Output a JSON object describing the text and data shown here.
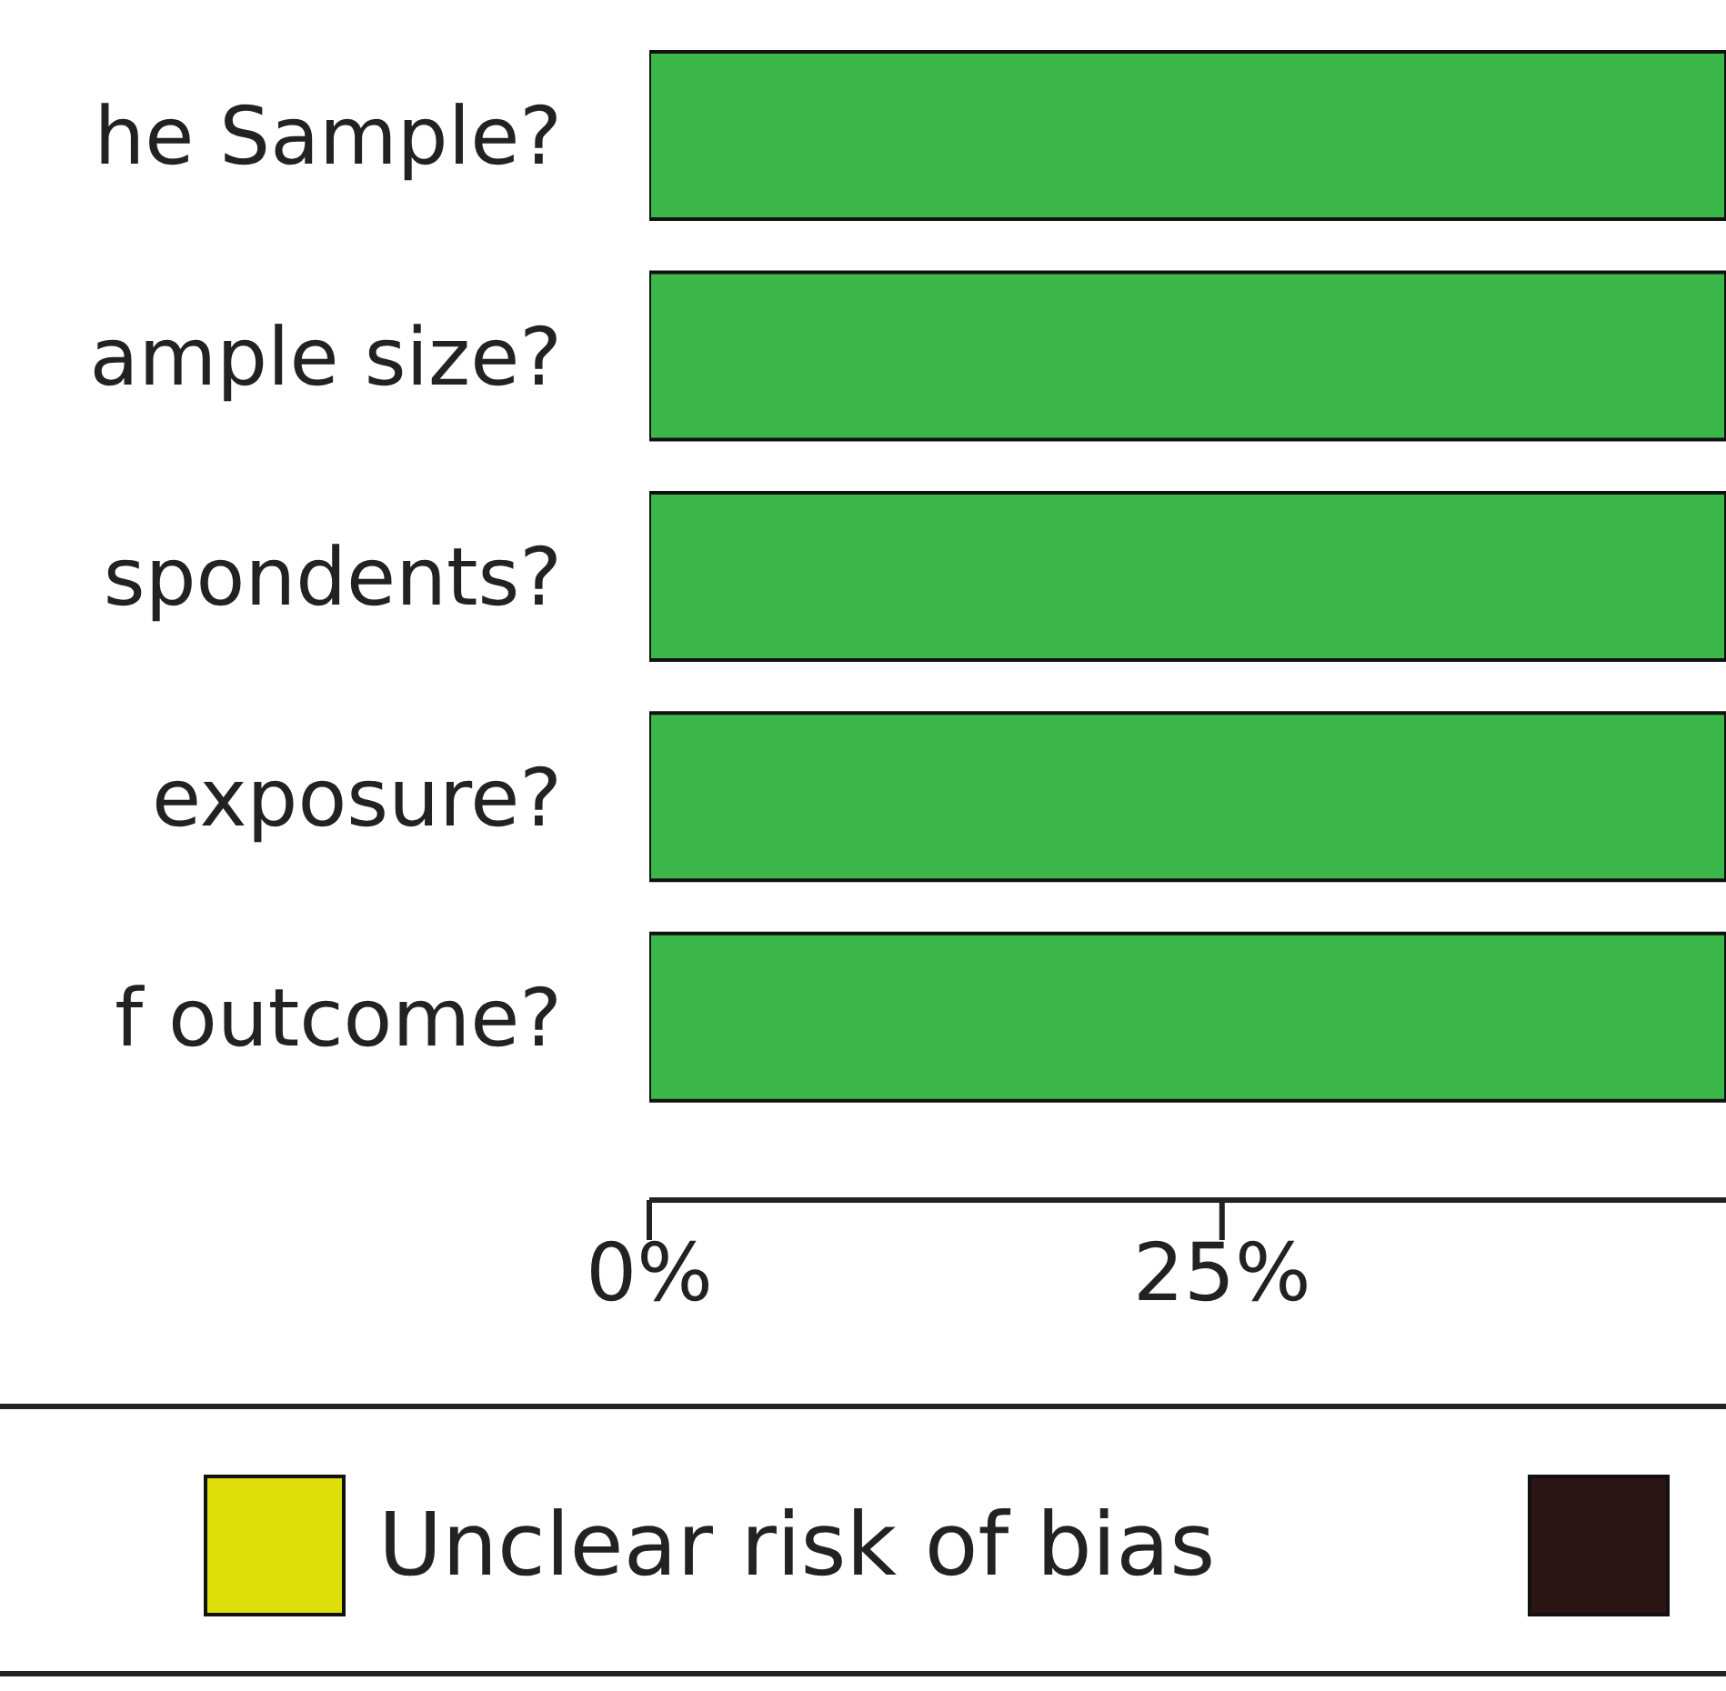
{
  "chart_data": {
    "type": "bar",
    "orientation": "horizontal",
    "stacked": true,
    "categories": [
      "he Sample?",
      "ample size?",
      "spondents?",
      "exposure?",
      "f outcome?"
    ],
    "series": [
      {
        "color": "#3cb84a",
        "values": [
          47,
          47,
          47,
          47,
          47
        ]
      },
      {
        "name": "Unclear risk of bias",
        "color": "#dede0a",
        "values": [
          0,
          0,
          0,
          0,
          0
        ]
      },
      {
        "color": "#2a1414",
        "values": [
          0,
          0,
          0,
          0,
          0
        ]
      }
    ],
    "xlim": [
      0,
      47
    ],
    "xticks": [
      {
        "value": 0,
        "label": "0%"
      },
      {
        "value": 25,
        "label": "25%"
      }
    ],
    "grid": false,
    "legend": "bottom"
  }
}
